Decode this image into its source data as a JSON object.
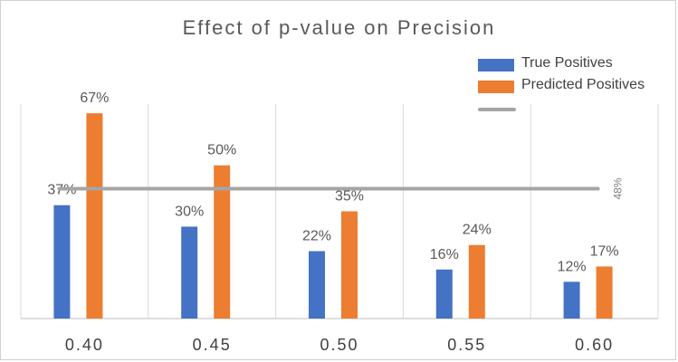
{
  "chart_data": {
    "type": "bar",
    "title": "Effect of p-value on Precision",
    "categories": [
      "0.40",
      "0.45",
      "0.50",
      "0.55",
      "0.60"
    ],
    "series": [
      {
        "name": "True Positives",
        "values": [
          37,
          30,
          22,
          16,
          12
        ],
        "color": "#4472c4",
        "labels": [
          "37%",
          "30%",
          "22%",
          "16%",
          "12%"
        ]
      },
      {
        "name": "Predicted Positives",
        "values": [
          67,
          50,
          35,
          24,
          17
        ],
        "color": "#ed7d31",
        "labels": [
          "67%",
          "50%",
          "35%",
          "24%",
          "17%"
        ]
      }
    ],
    "reference_line": {
      "value": 48,
      "label": "48%",
      "color": "#a5a5a5"
    },
    "ylim": [
      0,
      70
    ],
    "grid": "vertical",
    "legend_position": "top-right",
    "xlabel": "",
    "ylabel": ""
  }
}
